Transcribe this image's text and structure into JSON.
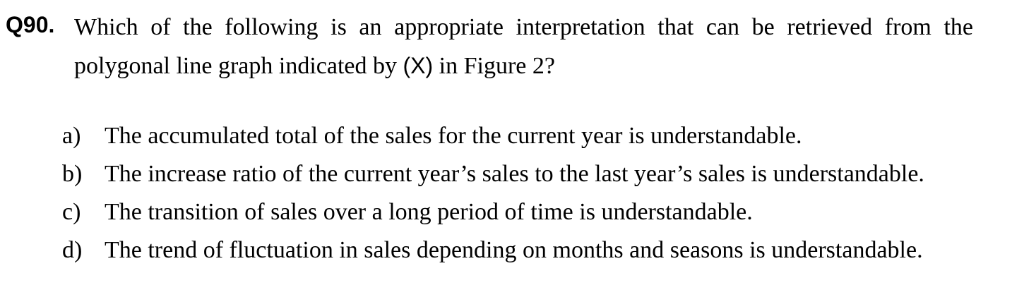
{
  "question": {
    "number": "Q90.",
    "text_before": "Which of the following is an appropriate interpretation that can be retrieved from the polygonal line graph indicated by ",
    "marker": "(X)",
    "text_after": " in Figure 2?"
  },
  "options": [
    {
      "letter": "a)",
      "text": "The accumulated total of the sales for the current year is understandable."
    },
    {
      "letter": "b)",
      "text": "The increase ratio of the current year’s sales to the last year’s sales is understandable."
    },
    {
      "letter": "c)",
      "text": "The transition of sales over a long period of time is understandable."
    },
    {
      "letter": "d)",
      "text": "The trend of fluctuation in sales depending on months and seasons is understandable."
    }
  ]
}
